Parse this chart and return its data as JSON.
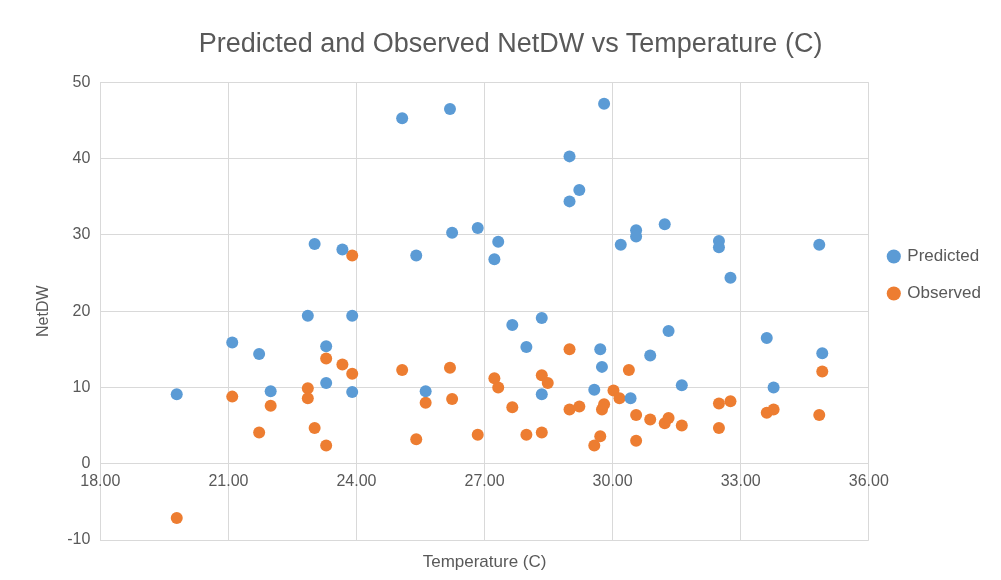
{
  "chart_data": {
    "type": "scatter",
    "title": "Predicted and Observed NetDW vs Temperature (C)",
    "xlabel": "Temperature (C)",
    "ylabel": "NetDW",
    "xlim": [
      18,
      36
    ],
    "xticks": [
      {
        "value": 18,
        "label": "18.00"
      },
      {
        "value": 21,
        "label": "21.00"
      },
      {
        "value": 24,
        "label": "24.00"
      },
      {
        "value": 27,
        "label": "27.00"
      },
      {
        "value": 30,
        "label": "30.00"
      },
      {
        "value": 33,
        "label": "33.00"
      },
      {
        "value": 36,
        "label": "36.00"
      }
    ],
    "ylim": [
      -10,
      50
    ],
    "yticks": [
      -10,
      0,
      10,
      20,
      30,
      40,
      50
    ],
    "grid": true,
    "legend": "right",
    "marker": "circle",
    "series": [
      {
        "name": "Predicted",
        "color": "#5b9bd5",
        "x": [
          19.79,
          21.09,
          21.72,
          21.99,
          22.86,
          23.02,
          23.29,
          23.29,
          23.67,
          23.9,
          23.9,
          25.07,
          25.4,
          25.62,
          26.19,
          26.24,
          26.84,
          27.32,
          27.23,
          27.65,
          27.98,
          28.34,
          28.34,
          28.99,
          28.99,
          29.22,
          29.8,
          29.71,
          29.75,
          29.57,
          30.42,
          30.19,
          30.55,
          30.55,
          31.22,
          31.31,
          30.88,
          31.62,
          32.49,
          32.49,
          32.76,
          33.61,
          33.77,
          34.84,
          34.91
        ],
        "values": [
          9.1,
          15.9,
          14.4,
          9.5,
          19.4,
          28.8,
          15.4,
          10.6,
          28.1,
          19.4,
          9.4,
          45.3,
          27.3,
          9.5,
          46.5,
          30.3,
          30.9,
          29.1,
          26.8,
          18.2,
          15.3,
          19.1,
          9.1,
          40.3,
          34.4,
          35.9,
          47.2,
          15.0,
          12.7,
          9.7,
          8.6,
          28.7,
          30.6,
          29.8,
          31.4,
          17.4,
          14.2,
          10.3,
          29.2,
          28.4,
          24.4,
          16.5,
          10.0,
          28.7,
          14.5
        ]
      },
      {
        "name": "Observed",
        "color": "#ed7d31",
        "x": [
          19.79,
          21.09,
          21.72,
          21.99,
          22.86,
          22.86,
          23.02,
          23.29,
          23.29,
          23.67,
          23.9,
          23.9,
          25.07,
          25.4,
          25.62,
          26.19,
          26.24,
          26.84,
          27.23,
          27.32,
          27.65,
          27.98,
          28.34,
          28.34,
          28.48,
          28.99,
          28.99,
          29.22,
          29.57,
          29.71,
          29.75,
          29.8,
          30.02,
          30.16,
          30.38,
          30.55,
          30.55,
          30.88,
          31.22,
          31.31,
          31.62,
          32.49,
          32.76,
          32.49,
          33.61,
          33.77,
          34.84,
          34.91
        ],
        "values": [
          -7.1,
          8.8,
          4.1,
          7.6,
          9.9,
          8.6,
          4.7,
          13.8,
          2.4,
          13.0,
          11.8,
          27.3,
          12.3,
          3.2,
          8.0,
          12.6,
          8.5,
          3.8,
          11.2,
          10.0,
          7.4,
          3.8,
          4.1,
          11.6,
          10.6,
          15.0,
          7.1,
          7.5,
          2.4,
          3.6,
          7.1,
          7.8,
          9.6,
          8.6,
          12.3,
          3.0,
          6.4,
          5.8,
          5.3,
          6.0,
          5.0,
          7.9,
          8.2,
          4.7,
          6.7,
          7.1,
          6.4,
          12.1
        ]
      }
    ]
  }
}
